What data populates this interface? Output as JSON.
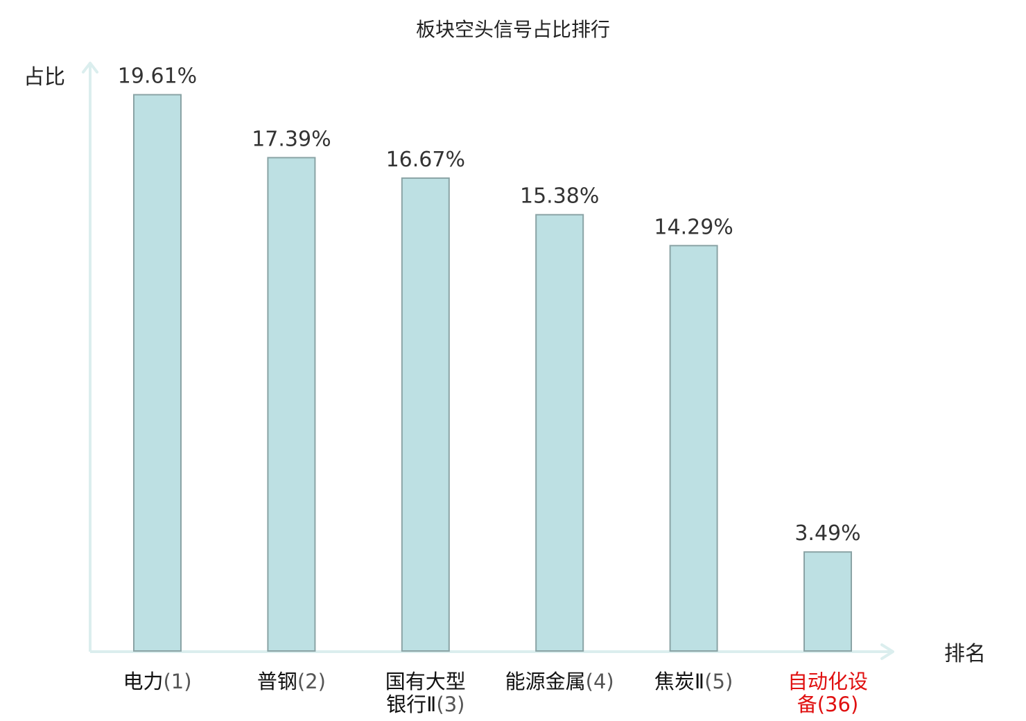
{
  "chart_data": {
    "type": "bar",
    "title": "板块空头信号占比排行",
    "ylabel": "占比",
    "xlabel": "排名",
    "ylim": [
      0,
      20.7
    ],
    "grid": false,
    "categories": [
      {
        "lines": [
          "电力"
        ],
        "rank": "(1)",
        "highlight": false
      },
      {
        "lines": [
          "普钢"
        ],
        "rank": "(2)",
        "highlight": false
      },
      {
        "lines": [
          "国有大型",
          "银行Ⅱ"
        ],
        "rank": "(3)",
        "highlight": false
      },
      {
        "lines": [
          "能源金属"
        ],
        "rank": "(4)",
        "highlight": false
      },
      {
        "lines": [
          "焦炭Ⅱ"
        ],
        "rank": "(5)",
        "highlight": false
      },
      {
        "lines": [
          "自动化设",
          "备"
        ],
        "rank": "(36)",
        "highlight": true
      }
    ],
    "values": [
      19.61,
      17.39,
      16.67,
      15.38,
      14.29,
      3.49
    ],
    "value_labels": [
      "19.61%",
      "17.39%",
      "16.67%",
      "15.38%",
      "14.29%",
      "3.49%"
    ]
  },
  "colors": {
    "bar_fill": "#bde0e3",
    "bar_stroke": "#8aa3a5",
    "axis": "#dbeeee",
    "highlight": "#e01010"
  }
}
